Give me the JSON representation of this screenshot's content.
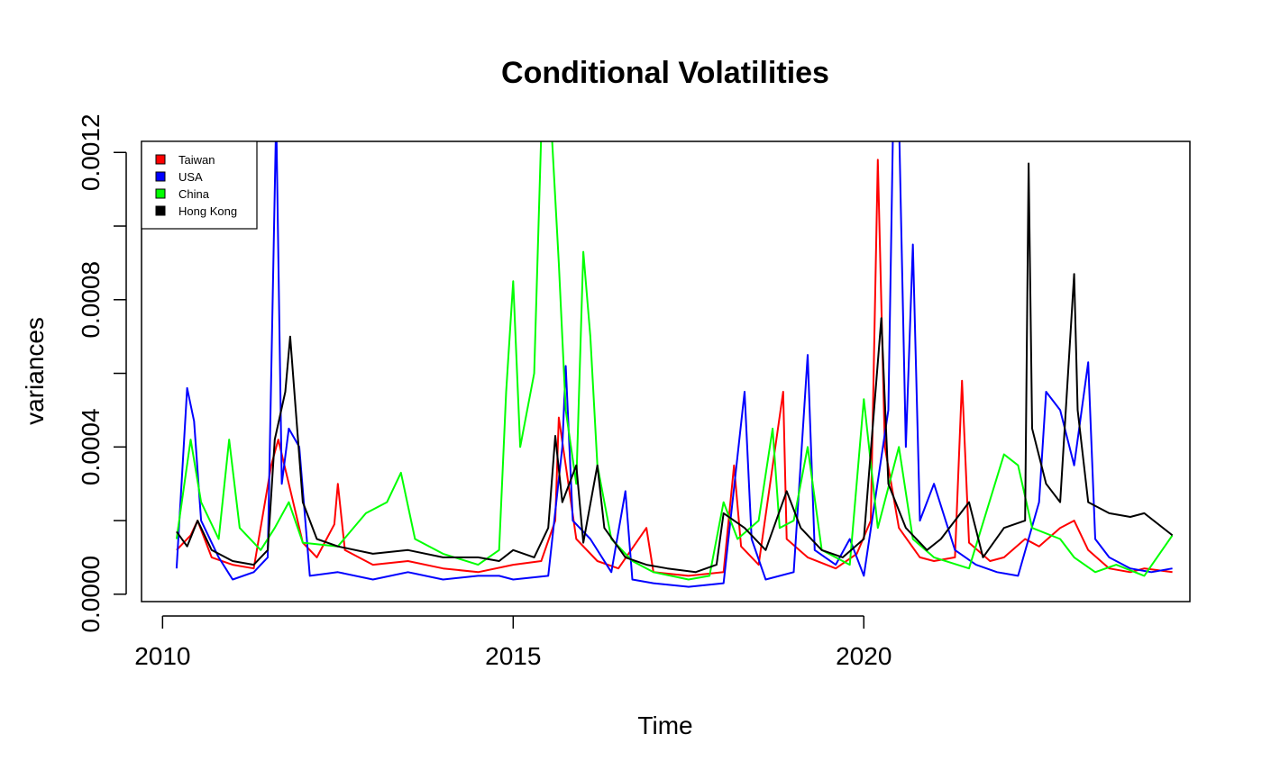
{
  "chart_data": {
    "type": "line",
    "title": "Conditional Volatilities",
    "xlabel": "Time",
    "ylabel": "variances",
    "xlim": [
      2009.7,
      2024.65
    ],
    "ylim": [
      -2e-05,
      0.00123
    ],
    "x_ticks": [
      2010,
      2015,
      2020
    ],
    "y_ticks": [
      0.0,
      0.0002,
      0.0004,
      0.0006,
      0.0008,
      0.001,
      0.0012
    ],
    "y_tick_labels": [
      "0.0000",
      "",
      "0.0004",
      "",
      "0.0008",
      "",
      "0.0012"
    ],
    "grid": false,
    "legend_position": "top-left",
    "series": [
      {
        "name": "Taiwan",
        "color": "#ff0000",
        "points": [
          [
            2010.2,
            0.00012
          ],
          [
            2010.4,
            0.00016
          ],
          [
            2010.5,
            0.0002
          ],
          [
            2010.7,
            0.0001
          ],
          [
            2011.0,
            8e-05
          ],
          [
            2011.3,
            7e-05
          ],
          [
            2011.55,
            0.00035
          ],
          [
            2011.65,
            0.00042
          ],
          [
            2011.8,
            0.0003
          ],
          [
            2012.0,
            0.00014
          ],
          [
            2012.2,
            0.0001
          ],
          [
            2012.45,
            0.00019
          ],
          [
            2012.5,
            0.0003
          ],
          [
            2012.6,
            0.00012
          ],
          [
            2013.0,
            8e-05
          ],
          [
            2013.5,
            9e-05
          ],
          [
            2014.0,
            7e-05
          ],
          [
            2014.5,
            6e-05
          ],
          [
            2015.0,
            8e-05
          ],
          [
            2015.4,
            9e-05
          ],
          [
            2015.6,
            0.0002
          ],
          [
            2015.65,
            0.00048
          ],
          [
            2015.75,
            0.00035
          ],
          [
            2015.9,
            0.00015
          ],
          [
            2016.2,
            9e-05
          ],
          [
            2016.5,
            7e-05
          ],
          [
            2016.9,
            0.00018
          ],
          [
            2017.0,
            6e-05
          ],
          [
            2017.5,
            5e-05
          ],
          [
            2018.0,
            6e-05
          ],
          [
            2018.15,
            0.00035
          ],
          [
            2018.25,
            0.00013
          ],
          [
            2018.5,
            8e-05
          ],
          [
            2018.85,
            0.00055
          ],
          [
            2018.9,
            0.00015
          ],
          [
            2019.2,
            0.0001
          ],
          [
            2019.6,
            7e-05
          ],
          [
            2019.9,
            0.00011
          ],
          [
            2020.1,
            0.0002
          ],
          [
            2020.2,
            0.00118
          ],
          [
            2020.3,
            0.0004
          ],
          [
            2020.5,
            0.00018
          ],
          [
            2020.8,
            0.0001
          ],
          [
            2021.0,
            9e-05
          ],
          [
            2021.3,
            0.0001
          ],
          [
            2021.4,
            0.00058
          ],
          [
            2021.5,
            0.00014
          ],
          [
            2021.8,
            9e-05
          ],
          [
            2022.0,
            0.0001
          ],
          [
            2022.3,
            0.00015
          ],
          [
            2022.5,
            0.00013
          ],
          [
            2022.8,
            0.00018
          ],
          [
            2023.0,
            0.0002
          ],
          [
            2023.2,
            0.00012
          ],
          [
            2023.5,
            7e-05
          ],
          [
            2023.8,
            6e-05
          ],
          [
            2024.0,
            7e-05
          ],
          [
            2024.4,
            6e-05
          ]
        ]
      },
      {
        "name": "USA",
        "color": "#0000ff",
        "points": [
          [
            2010.2,
            7e-05
          ],
          [
            2010.35,
            0.00056
          ],
          [
            2010.45,
            0.00047
          ],
          [
            2010.55,
            0.0002
          ],
          [
            2010.8,
            0.0001
          ],
          [
            2011.0,
            4e-05
          ],
          [
            2011.3,
            6e-05
          ],
          [
            2011.5,
            0.0001
          ],
          [
            2011.62,
            0.0013
          ],
          [
            2011.7,
            0.0003
          ],
          [
            2011.8,
            0.00045
          ],
          [
            2011.95,
            0.0004
          ],
          [
            2012.1,
            5e-05
          ],
          [
            2012.5,
            6e-05
          ],
          [
            2013.0,
            4e-05
          ],
          [
            2013.5,
            6e-05
          ],
          [
            2014.0,
            4e-05
          ],
          [
            2014.5,
            5e-05
          ],
          [
            2014.8,
            5e-05
          ],
          [
            2015.0,
            4e-05
          ],
          [
            2015.5,
            5e-05
          ],
          [
            2015.7,
            0.0004
          ],
          [
            2015.75,
            0.00062
          ],
          [
            2015.85,
            0.0002
          ],
          [
            2016.1,
            0.00015
          ],
          [
            2016.4,
            6e-05
          ],
          [
            2016.6,
            0.00028
          ],
          [
            2016.7,
            4e-05
          ],
          [
            2017.0,
            3e-05
          ],
          [
            2017.5,
            2e-05
          ],
          [
            2018.0,
            3e-05
          ],
          [
            2018.3,
            0.00055
          ],
          [
            2018.4,
            0.00015
          ],
          [
            2018.6,
            4e-05
          ],
          [
            2019.0,
            6e-05
          ],
          [
            2019.2,
            0.00065
          ],
          [
            2019.3,
            0.00012
          ],
          [
            2019.6,
            8e-05
          ],
          [
            2019.8,
            0.00015
          ],
          [
            2020.0,
            5e-05
          ],
          [
            2020.35,
            0.0005
          ],
          [
            2020.42,
            0.0013
          ],
          [
            2020.5,
            0.0013
          ],
          [
            2020.6,
            0.0004
          ],
          [
            2020.7,
            0.00095
          ],
          [
            2020.8,
            0.0002
          ],
          [
            2021.0,
            0.0003
          ],
          [
            2021.3,
            0.00012
          ],
          [
            2021.6,
            8e-05
          ],
          [
            2021.9,
            6e-05
          ],
          [
            2022.2,
            5e-05
          ],
          [
            2022.5,
            0.00025
          ],
          [
            2022.6,
            0.00055
          ],
          [
            2022.8,
            0.0005
          ],
          [
            2023.0,
            0.00035
          ],
          [
            2023.2,
            0.00063
          ],
          [
            2023.3,
            0.00015
          ],
          [
            2023.5,
            0.0001
          ],
          [
            2023.8,
            7e-05
          ],
          [
            2024.1,
            6e-05
          ],
          [
            2024.4,
            7e-05
          ]
        ]
      },
      {
        "name": "China",
        "color": "#00ff00",
        "points": [
          [
            2010.2,
            0.00015
          ],
          [
            2010.4,
            0.00042
          ],
          [
            2010.55,
            0.00025
          ],
          [
            2010.8,
            0.00015
          ],
          [
            2010.95,
            0.00042
          ],
          [
            2011.1,
            0.00018
          ],
          [
            2011.4,
            0.00012
          ],
          [
            2011.6,
            0.00018
          ],
          [
            2011.8,
            0.00025
          ],
          [
            2012.0,
            0.00014
          ],
          [
            2012.5,
            0.00013
          ],
          [
            2012.9,
            0.00022
          ],
          [
            2013.2,
            0.00025
          ],
          [
            2013.4,
            0.00033
          ],
          [
            2013.6,
            0.00015
          ],
          [
            2014.0,
            0.00011
          ],
          [
            2014.5,
            8e-05
          ],
          [
            2014.8,
            0.00012
          ],
          [
            2014.9,
            0.00055
          ],
          [
            2015.0,
            0.00085
          ],
          [
            2015.1,
            0.0004
          ],
          [
            2015.3,
            0.0006
          ],
          [
            2015.4,
            0.00125
          ],
          [
            2015.55,
            0.00125
          ],
          [
            2015.65,
            0.0009
          ],
          [
            2015.75,
            0.0005
          ],
          [
            2015.9,
            0.0003
          ],
          [
            2016.0,
            0.00093
          ],
          [
            2016.1,
            0.0007
          ],
          [
            2016.2,
            0.00035
          ],
          [
            2016.4,
            0.00015
          ],
          [
            2016.7,
            9e-05
          ],
          [
            2017.0,
            6e-05
          ],
          [
            2017.5,
            4e-05
          ],
          [
            2017.8,
            5e-05
          ],
          [
            2018.0,
            0.00025
          ],
          [
            2018.2,
            0.00015
          ],
          [
            2018.5,
            0.0002
          ],
          [
            2018.7,
            0.00045
          ],
          [
            2018.8,
            0.00018
          ],
          [
            2019.0,
            0.0002
          ],
          [
            2019.2,
            0.0004
          ],
          [
            2019.4,
            0.00012
          ],
          [
            2019.8,
            8e-05
          ],
          [
            2020.0,
            0.00053
          ],
          [
            2020.2,
            0.00018
          ],
          [
            2020.5,
            0.0004
          ],
          [
            2020.7,
            0.00015
          ],
          [
            2021.0,
            0.0001
          ],
          [
            2021.5,
            7e-05
          ],
          [
            2022.0,
            0.00038
          ],
          [
            2022.2,
            0.00035
          ],
          [
            2022.4,
            0.00018
          ],
          [
            2022.8,
            0.00015
          ],
          [
            2023.0,
            0.0001
          ],
          [
            2023.3,
            6e-05
          ],
          [
            2023.6,
            8e-05
          ],
          [
            2024.0,
            5e-05
          ],
          [
            2024.4,
            0.00016
          ]
        ]
      },
      {
        "name": "Hong Kong",
        "color": "#000000",
        "points": [
          [
            2010.2,
            0.00017
          ],
          [
            2010.35,
            0.00013
          ],
          [
            2010.5,
            0.0002
          ],
          [
            2010.7,
            0.00012
          ],
          [
            2011.0,
            9e-05
          ],
          [
            2011.3,
            8e-05
          ],
          [
            2011.5,
            0.00012
          ],
          [
            2011.6,
            0.00042
          ],
          [
            2011.75,
            0.00055
          ],
          [
            2011.82,
            0.0007
          ],
          [
            2011.9,
            0.0005
          ],
          [
            2012.0,
            0.00025
          ],
          [
            2012.2,
            0.00015
          ],
          [
            2012.5,
            0.00013
          ],
          [
            2013.0,
            0.00011
          ],
          [
            2013.5,
            0.00012
          ],
          [
            2014.0,
            0.0001
          ],
          [
            2014.5,
            0.0001
          ],
          [
            2014.8,
            9e-05
          ],
          [
            2015.0,
            0.00012
          ],
          [
            2015.3,
            0.0001
          ],
          [
            2015.5,
            0.00018
          ],
          [
            2015.6,
            0.00043
          ],
          [
            2015.7,
            0.00025
          ],
          [
            2015.9,
            0.00035
          ],
          [
            2016.0,
            0.00014
          ],
          [
            2016.2,
            0.00035
          ],
          [
            2016.3,
            0.00018
          ],
          [
            2016.6,
            0.0001
          ],
          [
            2016.9,
            8e-05
          ],
          [
            2017.2,
            7e-05
          ],
          [
            2017.6,
            6e-05
          ],
          [
            2017.9,
            8e-05
          ],
          [
            2018.0,
            0.00022
          ],
          [
            2018.3,
            0.00018
          ],
          [
            2018.6,
            0.00012
          ],
          [
            2018.9,
            0.00028
          ],
          [
            2019.1,
            0.00018
          ],
          [
            2019.4,
            0.00012
          ],
          [
            2019.7,
            0.0001
          ],
          [
            2020.0,
            0.00015
          ],
          [
            2020.25,
            0.00075
          ],
          [
            2020.35,
            0.0003
          ],
          [
            2020.6,
            0.00018
          ],
          [
            2020.9,
            0.00012
          ],
          [
            2021.1,
            0.00015
          ],
          [
            2021.5,
            0.00025
          ],
          [
            2021.7,
            0.0001
          ],
          [
            2022.0,
            0.00018
          ],
          [
            2022.3,
            0.0002
          ],
          [
            2022.35,
            0.00117
          ],
          [
            2022.4,
            0.00045
          ],
          [
            2022.6,
            0.0003
          ],
          [
            2022.8,
            0.00025
          ],
          [
            2023.0,
            0.00087
          ],
          [
            2023.05,
            0.0005
          ],
          [
            2023.2,
            0.00025
          ],
          [
            2023.5,
            0.00022
          ],
          [
            2023.8,
            0.00021
          ],
          [
            2024.0,
            0.00022
          ],
          [
            2024.4,
            0.00016
          ]
        ]
      }
    ]
  }
}
